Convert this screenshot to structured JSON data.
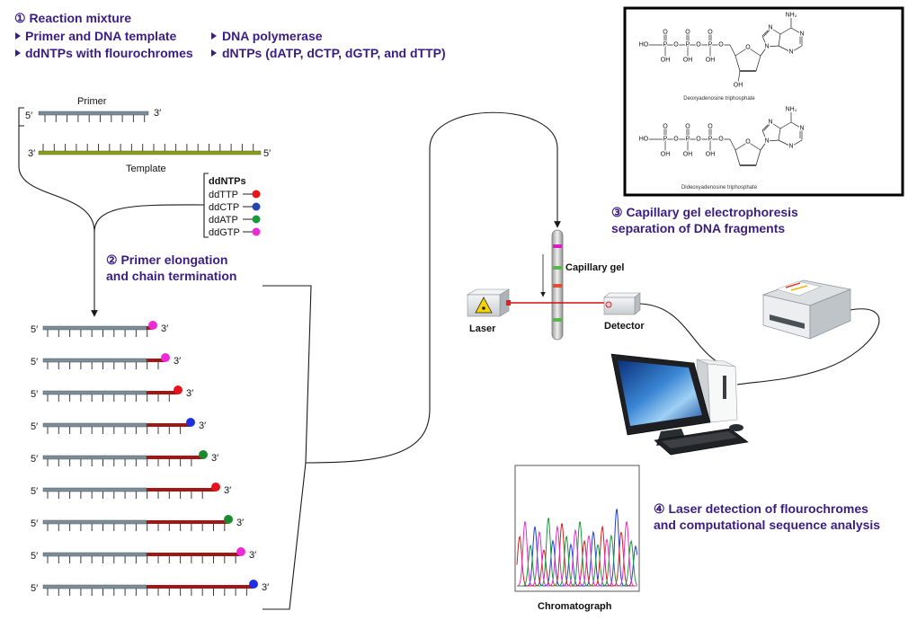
{
  "steps": {
    "reaction": {
      "title": "① Reaction mixture",
      "items": [
        "Primer and DNA template",
        "DNA polymerase",
        "ddNTPs with flourochromes",
        "dNTPs (dATP, dCTP, dGTP, and dTTP)"
      ]
    },
    "elongation": {
      "line1": "② Primer elongation",
      "line2": "and chain termination"
    },
    "electrophoresis": {
      "line1": "③ Capillary gel electrophoresis",
      "line2": "separation of DNA fragments"
    },
    "detection": {
      "line1": "④ Laser detection of flourochromes",
      "line2": "and computational sequence analysis"
    }
  },
  "ends": {
    "five_prime": "5′",
    "three_prime": "3′"
  },
  "primer_label": "Primer",
  "template_label": "Template",
  "ddntps": {
    "title": "ddNTPs",
    "items": [
      {
        "name": "ddTTP",
        "color": "#e8141b"
      },
      {
        "name": "ddCTP",
        "color": "#1f46b4"
      },
      {
        "name": "ddATP",
        "color": "#1b9a3c"
      },
      {
        "name": "ddGTP",
        "color": "#ee2ad8"
      }
    ]
  },
  "fragment_dye_colors": [
    "#ee2ad8",
    "#ee2ad8",
    "#e8141b",
    "#1f2fe0",
    "#1b8a2c",
    "#e8141b",
    "#1b8a2c",
    "#ee2ad8",
    "#1f2fe0"
  ],
  "instrument": {
    "capillary_label": "Capillary gel",
    "laser_label": "Laser",
    "detector_label": "Detector",
    "chromatograph_label": "Chromatograph"
  },
  "structures": {
    "atoms": {
      "terminal": "HO",
      "phosphorus": "P",
      "oxygen": "O",
      "hydroxyl": "OH",
      "nitrogen": "N",
      "amine": "NH₂"
    },
    "captions": [
      "Deoxyadenosine triphosphate",
      "Dideoxyadenosine triphosphate"
    ]
  },
  "colors": {
    "heading": "#3a1d82",
    "primer": "#7c8d97",
    "template": "#8a9a1e",
    "extension": "#a31616",
    "laser_beam": "#d01010"
  },
  "chromatogram_trace_colors": [
    "#1f3fd0",
    "#d42020",
    "#1a9a3a",
    "#e030c8"
  ]
}
